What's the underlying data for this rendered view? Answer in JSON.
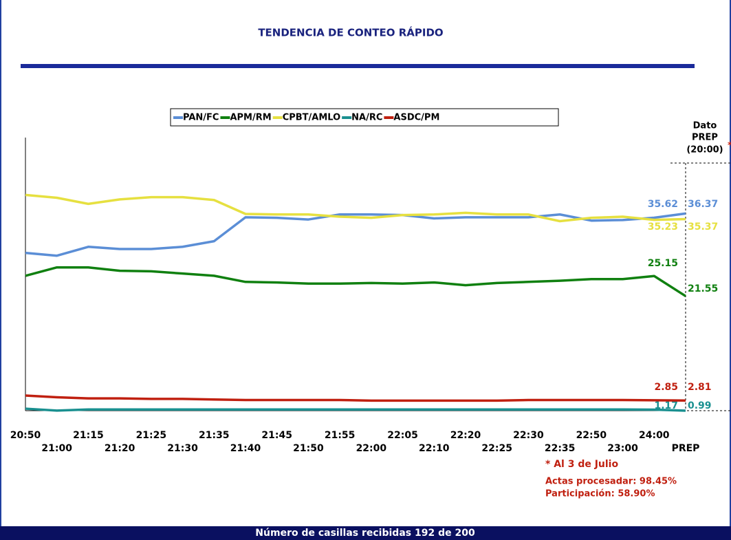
{
  "chart_data": {
    "type": "line",
    "title": "TENDENCIA DE CONTEO RÁPIDO",
    "categories": [
      "20:50",
      "21:00",
      "21:15",
      "21:20",
      "21:25",
      "21:30",
      "21:35",
      "21:40",
      "21:45",
      "21:50",
      "21:55",
      "22:00",
      "22:05",
      "22:10",
      "22:20",
      "22:25",
      "22:30",
      "22:35",
      "22:50",
      "23:00",
      "24:00",
      "PREP"
    ],
    "series": [
      {
        "name": "PAN/FC",
        "color": "#5b8ed6",
        "values": [
          29.3,
          28.8,
          30.4,
          30.0,
          30.0,
          30.4,
          31.4,
          35.7,
          35.6,
          35.3,
          36.2,
          36.2,
          36.1,
          35.5,
          35.7,
          35.7,
          35.7,
          36.2,
          35.1,
          35.2,
          35.62,
          36.37
        ]
      },
      {
        "name": "APM/RM",
        "color": "#108010",
        "values": [
          25.2,
          26.7,
          26.7,
          26.1,
          26.0,
          25.6,
          25.2,
          24.1,
          24.0,
          23.8,
          23.8,
          23.9,
          23.8,
          24.0,
          23.5,
          23.9,
          24.1,
          24.3,
          24.6,
          24.6,
          25.15,
          21.55
        ]
      },
      {
        "name": "CPBT/AMLO",
        "color": "#e6e040",
        "values": [
          39.7,
          39.2,
          38.1,
          38.9,
          39.3,
          39.3,
          38.8,
          36.3,
          36.2,
          36.2,
          35.8,
          35.6,
          36.1,
          36.2,
          36.5,
          36.2,
          36.2,
          35.0,
          35.6,
          35.8,
          35.23,
          35.37
        ]
      },
      {
        "name": "NA/RC",
        "color": "#1a9090",
        "values": [
          1.35,
          1.0,
          1.2,
          1.2,
          1.2,
          1.2,
          1.2,
          1.2,
          1.2,
          1.2,
          1.2,
          1.2,
          1.2,
          1.2,
          1.2,
          1.2,
          1.2,
          1.2,
          1.2,
          1.2,
          1.17,
          0.99
        ]
      },
      {
        "name": "ASDC/PM",
        "color": "#c02010",
        "values": [
          3.7,
          3.4,
          3.2,
          3.2,
          3.1,
          3.1,
          3.0,
          2.9,
          2.9,
          2.9,
          2.9,
          2.8,
          2.8,
          2.8,
          2.8,
          2.8,
          2.9,
          2.9,
          2.9,
          2.9,
          2.85,
          2.81
        ]
      }
    ],
    "ylim": [
      0,
      50
    ],
    "prep_header": [
      "Dato",
      "PREP",
      "(20:00)"
    ],
    "prep_marker": "*",
    "annotations": [
      "* Al 3 de Julio",
      "Actas procesadar: 98.45%",
      "Participación: 58.90%"
    ]
  },
  "footer": "Número de casillas recibidas 192 de 200"
}
